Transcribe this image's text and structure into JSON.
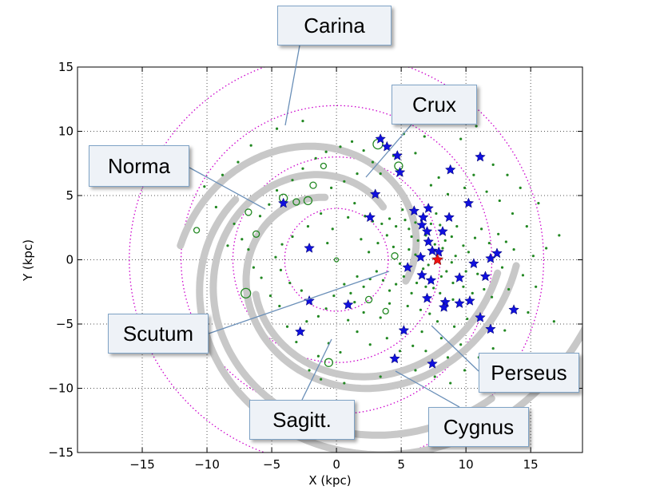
{
  "chart_data": {
    "type": "scatter",
    "xlabel": "X (kpc)",
    "ylabel": "Y (kpc)",
    "xlim": [
      -20,
      19
    ],
    "ylim": [
      -15,
      15
    ],
    "xticks": [
      -15,
      -10,
      -5,
      0,
      5,
      10,
      15
    ],
    "yticks": [
      -15,
      -10,
      -5,
      0,
      5,
      10,
      15
    ],
    "xtick_labels": [
      "−15",
      "−10",
      "−5",
      "0",
      "5",
      "10",
      "15"
    ],
    "ytick_labels": [
      "−15",
      "−10",
      "−5",
      "0",
      "5",
      "10",
      "15"
    ],
    "grid": true,
    "colors": {
      "spiral_arms": "#c8c8c8",
      "circles": "#cc00cc",
      "sources": "#228822",
      "stars": "#1010dd",
      "sun": "#ee1111",
      "callout_line": "#6a8fb8"
    },
    "reference_circle_radii_kpc": [
      4,
      8,
      12,
      16
    ],
    "arm_labels": [
      "Carina",
      "Crux",
      "Norma",
      "Scutum",
      "Perseus",
      "Sagitt.",
      "Cygnus"
    ],
    "sun_position": {
      "x": 7.8,
      "y": 0
    },
    "blue_stars": [
      [
        3.4,
        9.4
      ],
      [
        3.9,
        8.8
      ],
      [
        4.7,
        8.1
      ],
      [
        4.9,
        6.8
      ],
      [
        3,
        5.1
      ],
      [
        2.6,
        3.3
      ],
      [
        6,
        3.8
      ],
      [
        6.7,
        3.3
      ],
      [
        7.1,
        4
      ],
      [
        6.6,
        2.7
      ],
      [
        7,
        2.2
      ],
      [
        8.2,
        2.2
      ],
      [
        8.7,
        3.3
      ],
      [
        10.2,
        4.4
      ],
      [
        8.8,
        7
      ],
      [
        11.1,
        8
      ],
      [
        7.1,
        1.4
      ],
      [
        7.4,
        0.7
      ],
      [
        7.9,
        0.6
      ],
      [
        6.5,
        0.2
      ],
      [
        5.5,
        -0.6
      ],
      [
        6.6,
        -1.2
      ],
      [
        7.3,
        -1.6
      ],
      [
        9.5,
        -1.4
      ],
      [
        10.6,
        -0.3
      ],
      [
        11.5,
        -1.3
      ],
      [
        11.9,
        0.1
      ],
      [
        12.4,
        0.5
      ],
      [
        7,
        -3
      ],
      [
        8.4,
        -3.3
      ],
      [
        8.3,
        -3.7
      ],
      [
        9.5,
        -3.4
      ],
      [
        10.3,
        -3.2
      ],
      [
        11.1,
        -4.5
      ],
      [
        11.9,
        -5.4
      ],
      [
        13.7,
        -3.9
      ],
      [
        5.2,
        -5.5
      ],
      [
        7.4,
        -8.1
      ],
      [
        4.5,
        -7.7
      ],
      [
        0.9,
        -3.5
      ],
      [
        -2.1,
        -3.2
      ],
      [
        -2.8,
        -5.6
      ],
      [
        -2.1,
        0.9
      ],
      [
        -4.1,
        4.4
      ]
    ],
    "open_circles": [
      {
        "x": 3.2,
        "y": 9,
        "s": 6
      },
      {
        "x": 4.8,
        "y": 7.3,
        "s": 5
      },
      {
        "x": -4.1,
        "y": 4.8,
        "s": 5
      },
      {
        "x": -6.8,
        "y": 3.7,
        "s": 4
      },
      {
        "x": -6.2,
        "y": 2,
        "s": 4
      },
      {
        "x": -10.8,
        "y": 2.3,
        "s": 3.5
      },
      {
        "x": -2.2,
        "y": 4.6,
        "s": 5
      },
      {
        "x": -3.1,
        "y": 4.5,
        "s": 4
      },
      {
        "x": -1.8,
        "y": 5.8,
        "s": 4
      },
      {
        "x": -7,
        "y": -2.6,
        "s": 6
      },
      {
        "x": -0.6,
        "y": -8,
        "s": 5
      },
      {
        "x": 2.5,
        "y": -3.1,
        "s": 4
      },
      {
        "x": 4.5,
        "y": 0.3,
        "s": 4
      },
      {
        "x": -1,
        "y": 7.3,
        "s": 3.5
      },
      {
        "x": 0,
        "y": 0,
        "s": 2.5
      },
      {
        "x": 3.8,
        "y": -4,
        "s": 3.5
      }
    ],
    "small_dots": [
      [
        2.2,
        3.4
      ],
      [
        2.8,
        3
      ],
      [
        3.5,
        2.8
      ],
      [
        4.1,
        3.2
      ],
      [
        4.6,
        2.6
      ],
      [
        5.1,
        3.9
      ],
      [
        5.3,
        3.1
      ],
      [
        5.6,
        2.4
      ],
      [
        6.1,
        2.9
      ],
      [
        5.8,
        1.8
      ],
      [
        6.3,
        1.5
      ],
      [
        6.9,
        1.9
      ],
      [
        7.3,
        2.8
      ],
      [
        7.7,
        3.6
      ],
      [
        8,
        2.7
      ],
      [
        8.4,
        1.5
      ],
      [
        8.9,
        1.8
      ],
      [
        9.3,
        2.6
      ],
      [
        9.8,
        1.1
      ],
      [
        10.2,
        0.6
      ],
      [
        10.7,
        1.7
      ],
      [
        11.2,
        2.4
      ],
      [
        11.8,
        1.3
      ],
      [
        12.5,
        2
      ],
      [
        13.1,
        1.4
      ],
      [
        13.7,
        0.8
      ],
      [
        12.8,
        -0.6
      ],
      [
        11.4,
        -2.3
      ],
      [
        10.5,
        -2.6
      ],
      [
        9.8,
        -2.1
      ],
      [
        9,
        -1.8
      ],
      [
        8.5,
        -0.9
      ],
      [
        8.9,
        -0.2
      ],
      [
        8.1,
        -1.3
      ],
      [
        7.5,
        -2.2
      ],
      [
        6.9,
        -2.1
      ],
      [
        6.2,
        -1.8
      ],
      [
        5.8,
        -2.6
      ],
      [
        5.2,
        -1.3
      ],
      [
        4.6,
        -1.9
      ],
      [
        4.1,
        -2.4
      ],
      [
        3.6,
        -1.6
      ],
      [
        3.1,
        -0.9
      ],
      [
        2.6,
        -1.5
      ],
      [
        2.1,
        -2.1
      ],
      [
        1.6,
        -1.3
      ],
      [
        1.1,
        -2.6
      ],
      [
        0.6,
        -1.9
      ],
      [
        -0.2,
        -2.8
      ],
      [
        -0.8,
        -3.8
      ],
      [
        -1.4,
        -4.4
      ],
      [
        -2.3,
        -4.8
      ],
      [
        -3.1,
        -6.4
      ],
      [
        -3.8,
        -5.2
      ],
      [
        -4.4,
        -3.6
      ],
      [
        -5.1,
        -2.8
      ],
      [
        -5.8,
        -1.4
      ],
      [
        -6.4,
        -0.6
      ],
      [
        -6.8,
        0.8
      ],
      [
        -7.3,
        1.6
      ],
      [
        -7.9,
        2.8
      ],
      [
        -8.4,
        1.1
      ],
      [
        -5.9,
        3.4
      ],
      [
        -5.2,
        4.3
      ],
      [
        -4.6,
        5.4
      ],
      [
        -3.4,
        6.2
      ],
      [
        -2.6,
        7.1
      ],
      [
        -1.6,
        7.9
      ],
      [
        -0.8,
        8.4
      ],
      [
        0.3,
        8.8
      ],
      [
        1.2,
        9.2
      ],
      [
        2.1,
        8.5
      ],
      [
        2.8,
        7.6
      ],
      [
        1.6,
        6.7
      ],
      [
        0.6,
        6.1
      ],
      [
        -0.4,
        5.6
      ],
      [
        -1.2,
        3.6
      ],
      [
        -2.2,
        2.6
      ],
      [
        -3.4,
        1.8
      ],
      [
        -4.2,
        1.2
      ],
      [
        -4.7,
        0.2
      ],
      [
        -4.3,
        -0.8
      ],
      [
        -3.6,
        -1.8
      ],
      [
        -2.7,
        -2.4
      ],
      [
        1.9,
        1.6
      ],
      [
        2.5,
        0.6
      ],
      [
        3.2,
        1.3
      ],
      [
        3.9,
        1.9
      ],
      [
        4.4,
        1
      ],
      [
        4.9,
        -0.3
      ],
      [
        5.6,
        0.8
      ],
      [
        6.1,
        0.4
      ],
      [
        6.7,
        -0.7
      ],
      [
        7.1,
        -0.4
      ],
      [
        7.6,
        1.2
      ],
      [
        8.2,
        0.9
      ],
      [
        9.2,
        0.3
      ],
      [
        10,
        -0.9
      ],
      [
        10.9,
        -1.1
      ],
      [
        12,
        -2.9
      ],
      [
        13.3,
        -2.3
      ],
      [
        14.4,
        -1.2
      ],
      [
        15.2,
        0.3
      ],
      [
        16.2,
        0.9
      ],
      [
        17.2,
        1.9
      ],
      [
        16.8,
        -4.8
      ],
      [
        15.6,
        4.4
      ],
      [
        14.2,
        5.6
      ],
      [
        13.2,
        6.6
      ],
      [
        12.1,
        7.4
      ],
      [
        9.6,
        9.4
      ],
      [
        10.8,
        10.4
      ],
      [
        6.1,
        8.3
      ],
      [
        6.8,
        9.6
      ],
      [
        5.2,
        9.8
      ],
      [
        4.4,
        8.1
      ],
      [
        3.4,
        6.7
      ],
      [
        7.8,
        -4.8
      ],
      [
        6.6,
        -5.6
      ],
      [
        5.9,
        -6.7
      ],
      [
        6.9,
        -7.1
      ],
      [
        8.1,
        -6.1
      ],
      [
        9.1,
        -5.2
      ],
      [
        10.1,
        -4.6
      ],
      [
        9.6,
        -6.6
      ],
      [
        8.6,
        -7.6
      ],
      [
        7.6,
        -9.1
      ],
      [
        6.1,
        -8.6
      ],
      [
        4.9,
        -7.1
      ],
      [
        3.9,
        -6.1
      ],
      [
        2.6,
        -6.6
      ],
      [
        1.6,
        -5.6
      ],
      [
        0.9,
        -4.7
      ],
      [
        0.3,
        -7.2
      ],
      [
        -0.6,
        -6.5
      ],
      [
        -1.4,
        -7.5
      ],
      [
        -2.1,
        -8.6
      ],
      [
        -1.2,
        -9.3
      ],
      [
        0.6,
        -9.6
      ],
      [
        3.4,
        -9.1
      ],
      [
        -0.3,
        2.4
      ],
      [
        0.9,
        3.3
      ],
      [
        1.4,
        4.4
      ],
      [
        -0.7,
        1.3
      ],
      [
        -9.3,
        4.1
      ],
      [
        -10.2,
        5.7
      ],
      [
        -13.5,
        -6.9
      ],
      [
        -8.8,
        6.6
      ],
      [
        -7.6,
        7.6
      ],
      [
        -6.6,
        8.9
      ],
      [
        -4.6,
        10.2
      ],
      [
        -2.6,
        10.8
      ],
      [
        7.3,
        5.8
      ],
      [
        7.9,
        6.4
      ],
      [
        8.6,
        5.1
      ],
      [
        9.9,
        5.6
      ],
      [
        10.6,
        6.6
      ],
      [
        11.6,
        5.3
      ],
      [
        12.6,
        4.6
      ],
      [
        13.6,
        3.6
      ],
      [
        14.7,
        2.6
      ],
      [
        15.4,
        -2.1
      ],
      [
        14.8,
        -4.1
      ],
      [
        13,
        -5.5
      ],
      [
        12.1,
        -6.9
      ],
      [
        11,
        -7.6
      ],
      [
        9.9,
        -8.6
      ],
      [
        8.8,
        -9.6
      ],
      [
        4.1,
        -3.4
      ],
      [
        3.4,
        -4.5
      ],
      [
        2.1,
        -4.1
      ],
      [
        1.4,
        -3.3
      ],
      [
        6.5,
        -3.9
      ],
      [
        7.2,
        -4.2
      ],
      [
        5.5,
        -3.6
      ],
      [
        8,
        -2.6
      ],
      [
        9,
        -3.1
      ]
    ]
  }
}
